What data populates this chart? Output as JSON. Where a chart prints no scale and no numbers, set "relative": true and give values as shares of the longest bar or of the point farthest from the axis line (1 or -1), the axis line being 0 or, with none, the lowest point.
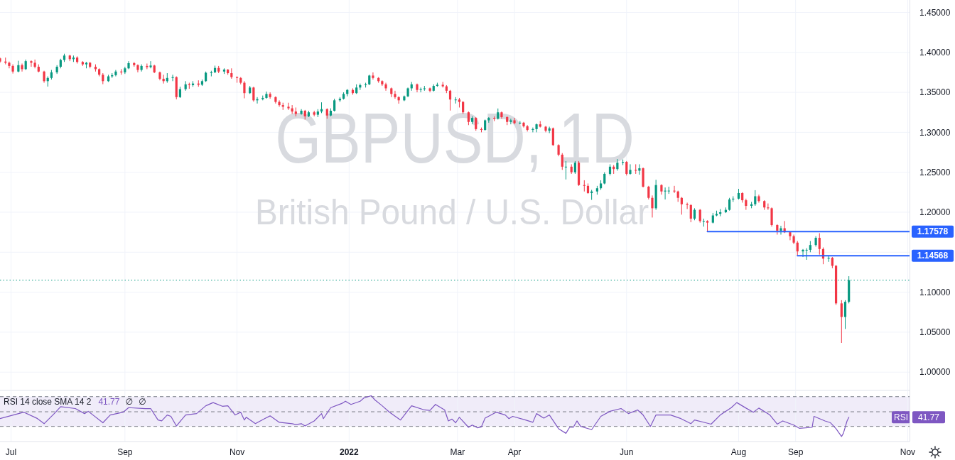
{
  "chart_data": [
    {
      "type": "candlestick",
      "title": "GBPUSD, 1D",
      "subtitle": "British Pound / U.S. Dollar",
      "x": [
        "2021-06-25",
        "2021-06-28",
        "2021-06-30",
        "2021-07-02",
        "2021-07-05",
        "2021-07-07",
        "2021-07-09",
        "2021-07-12",
        "2021-07-14",
        "2021-07-16",
        "2021-07-19",
        "2021-07-21",
        "2021-07-23",
        "2021-07-26",
        "2021-07-28",
        "2021-07-30",
        "2021-08-02",
        "2021-08-04",
        "2021-08-06",
        "2021-08-09",
        "2021-08-11",
        "2021-08-13",
        "2021-08-16",
        "2021-08-18",
        "2021-08-20",
        "2021-08-23",
        "2021-08-25",
        "2021-08-27",
        "2021-08-30",
        "2021-09-01",
        "2021-09-03",
        "2021-09-06",
        "2021-09-08",
        "2021-09-10",
        "2021-09-13",
        "2021-09-15",
        "2021-09-17",
        "2021-09-20",
        "2021-09-22",
        "2021-09-24",
        "2021-09-27",
        "2021-09-29",
        "2021-10-01",
        "2021-10-04",
        "2021-10-06",
        "2021-10-08",
        "2021-10-11",
        "2021-10-13",
        "2021-10-15",
        "2021-10-18",
        "2021-10-20",
        "2021-10-22",
        "2021-10-25",
        "2021-10-27",
        "2021-10-29",
        "2021-11-01",
        "2021-11-03",
        "2021-11-05",
        "2021-11-08",
        "2021-11-10",
        "2021-11-12",
        "2021-11-15",
        "2021-11-17",
        "2021-11-19",
        "2021-11-22",
        "2021-11-24",
        "2021-11-26",
        "2021-11-29",
        "2021-12-01",
        "2021-12-03",
        "2021-12-06",
        "2021-12-08",
        "2021-12-10",
        "2021-12-13",
        "2021-12-15",
        "2021-12-17",
        "2021-12-20",
        "2021-12-22",
        "2021-12-24",
        "2021-12-27",
        "2021-12-29",
        "2021-12-31",
        "2022-01-03",
        "2022-01-05",
        "2022-01-07",
        "2022-01-10",
        "2022-01-12",
        "2022-01-14",
        "2022-01-17",
        "2022-01-19",
        "2022-01-21",
        "2022-01-24",
        "2022-01-26",
        "2022-01-28",
        "2022-01-31",
        "2022-02-02",
        "2022-02-04",
        "2022-02-07",
        "2022-02-09",
        "2022-02-11",
        "2022-02-14",
        "2022-02-16",
        "2022-02-18",
        "2022-02-21",
        "2022-02-23",
        "2022-02-25",
        "2022-02-28",
        "2022-03-02",
        "2022-03-04",
        "2022-03-07",
        "2022-03-09",
        "2022-03-11",
        "2022-03-14",
        "2022-03-16",
        "2022-03-18",
        "2022-03-21",
        "2022-03-23",
        "2022-03-25",
        "2022-03-28",
        "2022-03-30",
        "2022-04-01",
        "2022-04-04",
        "2022-04-06",
        "2022-04-08",
        "2022-04-11",
        "2022-04-13",
        "2022-04-15",
        "2022-04-18",
        "2022-04-20",
        "2022-04-22",
        "2022-04-25",
        "2022-04-27",
        "2022-04-29",
        "2022-05-02",
        "2022-05-04",
        "2022-05-06",
        "2022-05-09",
        "2022-05-11",
        "2022-05-13",
        "2022-05-16",
        "2022-05-18",
        "2022-05-20",
        "2022-05-23",
        "2022-05-25",
        "2022-05-27",
        "2022-05-30",
        "2022-06-01",
        "2022-06-03",
        "2022-06-06",
        "2022-06-08",
        "2022-06-10",
        "2022-06-13",
        "2022-06-15",
        "2022-06-17",
        "2022-06-20",
        "2022-06-22",
        "2022-06-24",
        "2022-06-27",
        "2022-06-29",
        "2022-07-01",
        "2022-07-04",
        "2022-07-06",
        "2022-07-08",
        "2022-07-11",
        "2022-07-13",
        "2022-07-15",
        "2022-07-18",
        "2022-07-20",
        "2022-07-22",
        "2022-07-25",
        "2022-07-27",
        "2022-07-29",
        "2022-08-01",
        "2022-08-03",
        "2022-08-05",
        "2022-08-08",
        "2022-08-10",
        "2022-08-12",
        "2022-08-15",
        "2022-08-17",
        "2022-08-19",
        "2022-08-22",
        "2022-08-24",
        "2022-08-26",
        "2022-08-29",
        "2022-08-31",
        "2022-09-02",
        "2022-09-05",
        "2022-09-07",
        "2022-09-09",
        "2022-09-12",
        "2022-09-14",
        "2022-09-16",
        "2022-09-19",
        "2022-09-21",
        "2022-09-23",
        "2022-09-26",
        "2022-09-28",
        "2022-09-30"
      ],
      "ohlc": [
        [
          1.3925,
          1.3935,
          1.387,
          1.3885
        ],
        [
          1.3885,
          1.3935,
          1.385,
          1.387
        ],
        [
          1.387,
          1.3885,
          1.38,
          1.383
        ],
        [
          1.383,
          1.385,
          1.3735,
          1.376
        ],
        [
          1.376,
          1.3895,
          1.375,
          1.384
        ],
        [
          1.384,
          1.386,
          1.376,
          1.379
        ],
        [
          1.379,
          1.391,
          1.378,
          1.389
        ],
        [
          1.389,
          1.39,
          1.382,
          1.387
        ],
        [
          1.387,
          1.391,
          1.38,
          1.382
        ],
        [
          1.382,
          1.385,
          1.375,
          1.376
        ],
        [
          1.376,
          1.377,
          1.362,
          1.364
        ],
        [
          1.364,
          1.37,
          1.3572,
          1.368
        ],
        [
          1.368,
          1.378,
          1.366,
          1.375
        ],
        [
          1.375,
          1.384,
          1.373,
          1.382
        ],
        [
          1.382,
          1.392,
          1.38,
          1.3905
        ],
        [
          1.3905,
          1.3983,
          1.388,
          1.396
        ],
        [
          1.396,
          1.397,
          1.389,
          1.3915
        ],
        [
          1.3915,
          1.396,
          1.388,
          1.3935
        ],
        [
          1.3935,
          1.395,
          1.386,
          1.388
        ],
        [
          1.388,
          1.389,
          1.383,
          1.385
        ],
        [
          1.385,
          1.388,
          1.38,
          1.387
        ],
        [
          1.387,
          1.388,
          1.38,
          1.382
        ],
        [
          1.382,
          1.385,
          1.376,
          1.379
        ],
        [
          1.379,
          1.38,
          1.37,
          1.372
        ],
        [
          1.372,
          1.374,
          1.3602,
          1.364
        ],
        [
          1.364,
          1.372,
          1.363,
          1.37
        ],
        [
          1.37,
          1.374,
          1.368,
          1.3715
        ],
        [
          1.3715,
          1.378,
          1.37,
          1.376
        ],
        [
          1.376,
          1.379,
          1.372,
          1.375
        ],
        [
          1.375,
          1.382,
          1.373,
          1.38
        ],
        [
          1.38,
          1.389,
          1.379,
          1.3865
        ],
        [
          1.3865,
          1.388,
          1.382,
          1.384
        ],
        [
          1.384,
          1.385,
          1.375,
          1.378
        ],
        [
          1.378,
          1.385,
          1.376,
          1.383
        ],
        [
          1.383,
          1.386,
          1.379,
          1.3815
        ],
        [
          1.3815,
          1.389,
          1.38,
          1.3835
        ],
        [
          1.3835,
          1.3845,
          1.374,
          1.375
        ],
        [
          1.375,
          1.376,
          1.365,
          1.367
        ],
        [
          1.367,
          1.372,
          1.361,
          1.364
        ],
        [
          1.364,
          1.374,
          1.362,
          1.368
        ],
        [
          1.368,
          1.372,
          1.364,
          1.369
        ],
        [
          1.369,
          1.37,
          1.3412,
          1.344
        ],
        [
          1.344,
          1.357,
          1.343,
          1.354
        ],
        [
          1.354,
          1.364,
          1.352,
          1.36
        ],
        [
          1.36,
          1.362,
          1.3545,
          1.359
        ],
        [
          1.359,
          1.364,
          1.357,
          1.361
        ],
        [
          1.361,
          1.365,
          1.357,
          1.3595
        ],
        [
          1.3595,
          1.366,
          1.358,
          1.364
        ],
        [
          1.364,
          1.376,
          1.363,
          1.3745
        ],
        [
          1.3745,
          1.377,
          1.37,
          1.375
        ],
        [
          1.375,
          1.3834,
          1.374,
          1.3805
        ],
        [
          1.3805,
          1.383,
          1.374,
          1.376
        ],
        [
          1.376,
          1.38,
          1.373,
          1.3785
        ],
        [
          1.3785,
          1.379,
          1.372,
          1.374
        ],
        [
          1.374,
          1.38,
          1.367,
          1.369
        ],
        [
          1.369,
          1.37,
          1.362,
          1.368
        ],
        [
          1.368,
          1.369,
          1.36,
          1.362
        ],
        [
          1.362,
          1.364,
          1.3425,
          1.349
        ],
        [
          1.349,
          1.358,
          1.348,
          1.356
        ],
        [
          1.356,
          1.357,
          1.3384,
          1.34
        ],
        [
          1.34,
          1.344,
          1.336,
          1.3415
        ],
        [
          1.3415,
          1.346,
          1.34,
          1.343
        ],
        [
          1.343,
          1.351,
          1.342,
          1.348
        ],
        [
          1.348,
          1.35,
          1.342,
          1.344
        ],
        [
          1.344,
          1.345,
          1.336,
          1.338
        ],
        [
          1.338,
          1.34,
          1.332,
          1.334
        ],
        [
          1.334,
          1.337,
          1.328,
          1.332
        ],
        [
          1.332,
          1.337,
          1.328,
          1.33
        ],
        [
          1.33,
          1.334,
          1.323,
          1.326
        ],
        [
          1.326,
          1.331,
          1.32,
          1.323
        ],
        [
          1.323,
          1.329,
          1.322,
          1.327
        ],
        [
          1.327,
          1.328,
          1.316,
          1.32
        ],
        [
          1.32,
          1.327,
          1.319,
          1.325
        ],
        [
          1.325,
          1.327,
          1.32,
          1.322
        ],
        [
          1.322,
          1.329,
          1.319,
          1.326
        ],
        [
          1.326,
          1.3375,
          1.324,
          1.329
        ],
        [
          1.329,
          1.33,
          1.317,
          1.321
        ],
        [
          1.321,
          1.33,
          1.32,
          1.327
        ],
        [
          1.327,
          1.342,
          1.326,
          1.34
        ],
        [
          1.34,
          1.344,
          1.338,
          1.342
        ],
        [
          1.342,
          1.35,
          1.341,
          1.348
        ],
        [
          1.348,
          1.354,
          1.345,
          1.353
        ],
        [
          1.353,
          1.355,
          1.347,
          1.349
        ],
        [
          1.349,
          1.36,
          1.348,
          1.356
        ],
        [
          1.356,
          1.361,
          1.353,
          1.359
        ],
        [
          1.359,
          1.362,
          1.356,
          1.36
        ],
        [
          1.36,
          1.372,
          1.359,
          1.371
        ],
        [
          1.371,
          1.3749,
          1.366,
          1.368
        ],
        [
          1.368,
          1.369,
          1.362,
          1.364
        ],
        [
          1.364,
          1.365,
          1.358,
          1.36
        ],
        [
          1.36,
          1.362,
          1.352,
          1.355
        ],
        [
          1.355,
          1.356,
          1.344,
          1.348
        ],
        [
          1.348,
          1.352,
          1.342,
          1.344
        ],
        [
          1.344,
          1.345,
          1.3358,
          1.34
        ],
        [
          1.34,
          1.346,
          1.339,
          1.345
        ],
        [
          1.345,
          1.356,
          1.344,
          1.355
        ],
        [
          1.355,
          1.363,
          1.352,
          1.36
        ],
        [
          1.36,
          1.361,
          1.35,
          1.353
        ],
        [
          1.353,
          1.356,
          1.35,
          1.354
        ],
        [
          1.354,
          1.358,
          1.352,
          1.355
        ],
        [
          1.355,
          1.356,
          1.35,
          1.352
        ],
        [
          1.352,
          1.36,
          1.351,
          1.358
        ],
        [
          1.358,
          1.362,
          1.357,
          1.3595
        ],
        [
          1.3595,
          1.363,
          1.356,
          1.3575
        ],
        [
          1.3575,
          1.359,
          1.349,
          1.352
        ],
        [
          1.352,
          1.353,
          1.3272,
          1.341
        ],
        [
          1.341,
          1.344,
          1.336,
          1.341
        ],
        [
          1.341,
          1.343,
          1.331,
          1.338
        ],
        [
          1.338,
          1.339,
          1.323,
          1.325
        ],
        [
          1.325,
          1.326,
          1.309,
          1.313
        ],
        [
          1.313,
          1.32,
          1.31,
          1.318
        ],
        [
          1.318,
          1.319,
          1.302,
          1.304
        ],
        [
          1.304,
          1.306,
          1.3,
          1.303
        ],
        [
          1.303,
          1.316,
          1.302,
          1.315
        ],
        [
          1.315,
          1.319,
          1.312,
          1.318
        ],
        [
          1.318,
          1.32,
          1.314,
          1.317
        ],
        [
          1.317,
          1.3298,
          1.316,
          1.325
        ],
        [
          1.325,
          1.326,
          1.317,
          1.319
        ],
        [
          1.319,
          1.32,
          1.309,
          1.313
        ],
        [
          1.313,
          1.317,
          1.31,
          1.315
        ],
        [
          1.315,
          1.318,
          1.31,
          1.3115
        ],
        [
          1.3115,
          1.314,
          1.31,
          1.312
        ],
        [
          1.312,
          1.313,
          1.306,
          1.3075
        ],
        [
          1.3075,
          1.309,
          1.301,
          1.303
        ],
        [
          1.303,
          1.306,
          1.3,
          1.304
        ],
        [
          1.304,
          1.311,
          1.3,
          1.31
        ],
        [
          1.31,
          1.314,
          1.306,
          1.307
        ],
        [
          1.307,
          1.308,
          1.3,
          1.302
        ],
        [
          1.302,
          1.307,
          1.299,
          1.305
        ],
        [
          1.305,
          1.306,
          1.283,
          1.284
        ],
        [
          1.284,
          1.285,
          1.27,
          1.272
        ],
        [
          1.272,
          1.274,
          1.253,
          1.257
        ],
        [
          1.257,
          1.264,
          1.241,
          1.257
        ],
        [
          1.257,
          1.26,
          1.248,
          1.25
        ],
        [
          1.25,
          1.264,
          1.248,
          1.262
        ],
        [
          1.262,
          1.264,
          1.233,
          1.234
        ],
        [
          1.234,
          1.24,
          1.226,
          1.233
        ],
        [
          1.233,
          1.236,
          1.223,
          1.224
        ],
        [
          1.224,
          1.228,
          1.2155,
          1.226
        ],
        [
          1.226,
          1.233,
          1.222,
          1.23
        ],
        [
          1.23,
          1.24,
          1.228,
          1.236
        ],
        [
          1.236,
          1.25,
          1.235,
          1.248
        ],
        [
          1.248,
          1.26,
          1.246,
          1.257
        ],
        [
          1.257,
          1.259,
          1.248,
          1.254
        ],
        [
          1.254,
          1.2665,
          1.252,
          1.262
        ],
        [
          1.262,
          1.266,
          1.259,
          1.263
        ],
        [
          1.263,
          1.264,
          1.246,
          1.248
        ],
        [
          1.248,
          1.26,
          1.247,
          1.253
        ],
        [
          1.253,
          1.26,
          1.248,
          1.252
        ],
        [
          1.252,
          1.26,
          1.247,
          1.255
        ],
        [
          1.255,
          1.256,
          1.231,
          1.232
        ],
        [
          1.232,
          1.233,
          1.216,
          1.218
        ],
        [
          1.218,
          1.221,
          1.1934,
          1.205
        ],
        [
          1.205,
          1.2406,
          1.203,
          1.234
        ],
        [
          1.234,
          1.235,
          1.222,
          1.226
        ],
        [
          1.226,
          1.231,
          1.216,
          1.227
        ],
        [
          1.227,
          1.232,
          1.223,
          1.227
        ],
        [
          1.227,
          1.233,
          1.224,
          1.226
        ],
        [
          1.226,
          1.227,
          1.213,
          1.218
        ],
        [
          1.218,
          1.219,
          1.197,
          1.21
        ],
        [
          1.21,
          1.212,
          1.204,
          1.209
        ],
        [
          1.209,
          1.21,
          1.1875,
          1.192
        ],
        [
          1.192,
          1.205,
          1.19,
          1.203
        ],
        [
          1.203,
          1.204,
          1.187,
          1.189
        ],
        [
          1.189,
          1.192,
          1.182,
          1.189
        ],
        [
          1.189,
          1.19,
          1.176,
          1.187
        ],
        [
          1.187,
          1.199,
          1.186,
          1.196
        ],
        [
          1.196,
          1.202,
          1.195,
          1.198
        ],
        [
          1.198,
          1.204,
          1.195,
          1.2
        ],
        [
          1.2,
          1.206,
          1.199,
          1.203
        ],
        [
          1.203,
          1.218,
          1.202,
          1.216
        ],
        [
          1.216,
          1.22,
          1.213,
          1.217
        ],
        [
          1.217,
          1.2293,
          1.216,
          1.224
        ],
        [
          1.224,
          1.225,
          1.212,
          1.215
        ],
        [
          1.215,
          1.217,
          1.203,
          1.208
        ],
        [
          1.208,
          1.213,
          1.205,
          1.21
        ],
        [
          1.21,
          1.2276,
          1.208,
          1.22
        ],
        [
          1.22,
          1.222,
          1.212,
          1.214
        ],
        [
          1.214,
          1.215,
          1.203,
          1.206
        ],
        [
          1.206,
          1.211,
          1.203,
          1.205
        ],
        [
          1.205,
          1.206,
          1.182,
          1.184
        ],
        [
          1.184,
          1.185,
          1.172,
          1.177
        ],
        [
          1.177,
          1.183,
          1.172,
          1.18
        ],
        [
          1.18,
          1.189,
          1.174,
          1.175
        ],
        [
          1.175,
          1.176,
          1.165,
          1.17
        ],
        [
          1.17,
          1.172,
          1.16,
          1.162
        ],
        [
          1.162,
          1.164,
          1.1457,
          1.151
        ],
        [
          1.151,
          1.154,
          1.144,
          1.153
        ],
        [
          1.153,
          1.155,
          1.1405,
          1.153
        ],
        [
          1.153,
          1.164,
          1.15,
          1.159
        ],
        [
          1.159,
          1.17,
          1.157,
          1.168
        ],
        [
          1.168,
          1.1738,
          1.147,
          1.154
        ],
        [
          1.154,
          1.156,
          1.135,
          1.142
        ],
        [
          1.142,
          1.146,
          1.138,
          1.143
        ],
        [
          1.143,
          1.144,
          1.13,
          1.133
        ],
        [
          1.133,
          1.134,
          1.084,
          1.086
        ],
        [
          1.086,
          1.09,
          1.0366,
          1.069
        ],
        [
          1.069,
          1.09,
          1.054,
          1.088
        ],
        [
          1.088,
          1.12,
          1.086,
          1.115
        ]
      ],
      "series": [
        {
          "type": "line",
          "color": "#2962ff",
          "x": [
            "2022-07-15",
            "2022-11-02"
          ],
          "values": [
            1.17578,
            1.17578
          ],
          "value_labels": [
            null,
            "1.17578"
          ]
        },
        {
          "type": "line",
          "color": "#2962ff",
          "x": [
            "2022-09-02",
            "2022-11-02"
          ],
          "values": [
            1.14568,
            1.14568
          ],
          "value_labels": [
            null,
            "1.14568"
          ]
        }
      ],
      "ref_lines": [
        {
          "axis": "y",
          "value": 1.115,
          "color": "#089981",
          "line_style": "dotted"
        }
      ],
      "xlim": [
        "2021-06-25",
        "2022-11-02"
      ],
      "xticks": [
        {
          "value": "2021-07-01",
          "label": null
        },
        {
          "value": "2021-09-01",
          "label": null
        },
        {
          "value": "2021-11-01",
          "label": null
        },
        {
          "value": "2022-01-01",
          "label": null
        },
        {
          "value": "2022-03-01",
          "label": null
        },
        {
          "value": "2022-04-01",
          "label": null
        },
        {
          "value": "2022-06-01",
          "label": null
        },
        {
          "value": "2022-08-01",
          "label": null
        },
        {
          "value": "2022-09-01",
          "label": null
        },
        {
          "value": "2022-11-01",
          "label": null
        }
      ],
      "ylim": [
        0.978,
        1.4655
      ],
      "yticks": [
        {
          "value": 1.0,
          "label": "1.00000"
        },
        {
          "value": 1.05,
          "label": "1.05000"
        },
        {
          "value": 1.1,
          "label": "1.10000"
        },
        {
          "value": 1.15,
          "label": null
        },
        {
          "value": 1.2,
          "label": "1.20000"
        },
        {
          "value": 1.25,
          "label": "1.25000"
        },
        {
          "value": 1.3,
          "label": "1.30000"
        },
        {
          "value": 1.35,
          "label": "1.35000"
        },
        {
          "value": 1.4,
          "label": "1.40000"
        },
        {
          "value": 1.45,
          "label": "1.45000"
        }
      ],
      "grid": true,
      "tick_labels": "y"
    },
    {
      "type": "line",
      "title": "RSI 14 close SMA 14 2",
      "annotations": [
        "41.77",
        "∅",
        "∅",
        "RSI",
        "41.77"
      ],
      "relative": true,
      "series": [
        {
          "color": "#7e57c2",
          "x": [
            "2021-06-25",
            "2021-07-08",
            "2021-07-15",
            "2021-07-19",
            "2021-07-25",
            "2021-07-28",
            "2021-08-05",
            "2021-08-10",
            "2021-08-12",
            "2021-08-20",
            "2021-08-24",
            "2021-08-31",
            "2021-09-03",
            "2021-09-12",
            "2021-09-15",
            "2021-09-19",
            "2021-09-21",
            "2021-09-24",
            "2021-09-26",
            "2021-09-29",
            "2021-10-04",
            "2021-10-10",
            "2021-10-15",
            "2021-10-19",
            "2021-10-24",
            "2021-10-27",
            "2021-10-31",
            "2021-11-03",
            "2021-11-05",
            "2021-11-06",
            "2021-11-11",
            "2021-11-16",
            "2021-11-19",
            "2021-11-24",
            "2021-12-01",
            "2021-12-03",
            "2021-12-06",
            "2021-12-08",
            "2021-12-13",
            "2021-12-17",
            "2021-12-18",
            "2021-12-22",
            "2021-12-28",
            "2021-12-30",
            "2022-01-02",
            "2022-01-07",
            "2022-01-09",
            "2022-01-13",
            "2022-01-15",
            "2022-01-19",
            "2022-01-23",
            "2022-01-29",
            "2022-02-04",
            "2022-02-11",
            "2022-02-14",
            "2022-02-17",
            "2022-02-22",
            "2022-02-24",
            "2022-02-26",
            "2022-02-28",
            "2022-03-02",
            "2022-03-07",
            "2022-03-09",
            "2022-03-12",
            "2022-03-14",
            "2022-03-16",
            "2022-03-22",
            "2022-03-27",
            "2022-03-29",
            "2022-03-31",
            "2022-04-07",
            "2022-04-11",
            "2022-04-13",
            "2022-04-17",
            "2022-04-20",
            "2022-04-25",
            "2022-04-29",
            "2022-05-01",
            "2022-05-03",
            "2022-05-05",
            "2022-05-07",
            "2022-05-13",
            "2022-05-18",
            "2022-05-23",
            "2022-05-29",
            "2022-06-02",
            "2022-06-07",
            "2022-06-10",
            "2022-06-14",
            "2022-06-17",
            "2022-06-25",
            "2022-06-30",
            "2022-07-06",
            "2022-07-08",
            "2022-07-14",
            "2022-07-17",
            "2022-07-22",
            "2022-07-28",
            "2022-07-31",
            "2022-08-05",
            "2022-08-09",
            "2022-08-12",
            "2022-08-18",
            "2022-08-22",
            "2022-08-25",
            "2022-08-31",
            "2022-09-03",
            "2022-09-10",
            "2022-09-11",
            "2022-09-17",
            "2022-09-20",
            "2022-09-23",
            "2022-09-26",
            "2022-09-27",
            "2022-09-29",
            "2022-09-30"
          ],
          "values": [
            0.5,
            0.64,
            0.51,
            0.39,
            0.63,
            0.76,
            0.72,
            0.61,
            0.66,
            0.41,
            0.58,
            0.64,
            0.74,
            0.72,
            0.72,
            0.47,
            0.45,
            0.58,
            0.55,
            0.34,
            0.58,
            0.61,
            0.78,
            0.85,
            0.77,
            0.78,
            0.58,
            0.64,
            0.47,
            0.53,
            0.39,
            0.5,
            0.56,
            0.42,
            0.39,
            0.37,
            0.39,
            0.34,
            0.45,
            0.61,
            0.5,
            0.74,
            0.83,
            0.88,
            0.81,
            0.88,
            0.95,
            1,
            0.91,
            0.78,
            0.64,
            0.47,
            0.78,
            0.69,
            0.68,
            0.81,
            0.69,
            0.45,
            0.49,
            0.41,
            0.53,
            0.31,
            0.36,
            0.3,
            0.32,
            0.51,
            0.64,
            0.58,
            0.5,
            0.55,
            0.47,
            0.42,
            0.61,
            0.51,
            0.58,
            0.28,
            0.18,
            0.31,
            0.31,
            0.45,
            0.33,
            0.26,
            0.55,
            0.66,
            0.72,
            0.61,
            0.69,
            0.58,
            0.33,
            0.58,
            0.58,
            0.51,
            0.39,
            0.47,
            0.41,
            0.38,
            0.58,
            0.74,
            0.85,
            0.73,
            0.64,
            0.73,
            0.58,
            0.38,
            0.45,
            0.36,
            0.29,
            0.31,
            0.55,
            0.45,
            0.41,
            0.28,
            0.11,
            0.18,
            0.45,
            0.53
          ]
        }
      ],
      "bands": [
        {
          "axis": "y",
          "from": 0.33,
          "to": 0.98,
          "color": "#f0ecf9"
        }
      ],
      "ref_lines": [
        {
          "axis": "y",
          "value": 0.98,
          "color": "#787b86",
          "line_style": "dashed"
        },
        {
          "axis": "y",
          "value": 0.65,
          "color": "#787b86",
          "line_style": "dashed"
        },
        {
          "axis": "y",
          "value": 0.33,
          "color": "#787b86",
          "line_style": "dashed"
        }
      ],
      "xlim": [
        "2021-06-25",
        "2022-11-02"
      ],
      "xticks": [
        {
          "value": "2021-07-01",
          "label": "Jul"
        },
        {
          "value": "2021-09-01",
          "label": "Sep"
        },
        {
          "value": "2021-11-01",
          "label": "Nov"
        },
        {
          "value": "2022-01-01",
          "label": "2022"
        },
        {
          "value": "2022-03-01",
          "label": "Mar"
        },
        {
          "value": "2022-04-01",
          "label": "Apr"
        },
        {
          "value": "2022-06-01",
          "label": "Jun"
        },
        {
          "value": "2022-08-01",
          "label": "Aug"
        },
        {
          "value": "2022-09-01",
          "label": "Sep"
        },
        {
          "value": "2022-11-01",
          "label": "Nov"
        }
      ],
      "grid": "x"
    }
  ]
}
